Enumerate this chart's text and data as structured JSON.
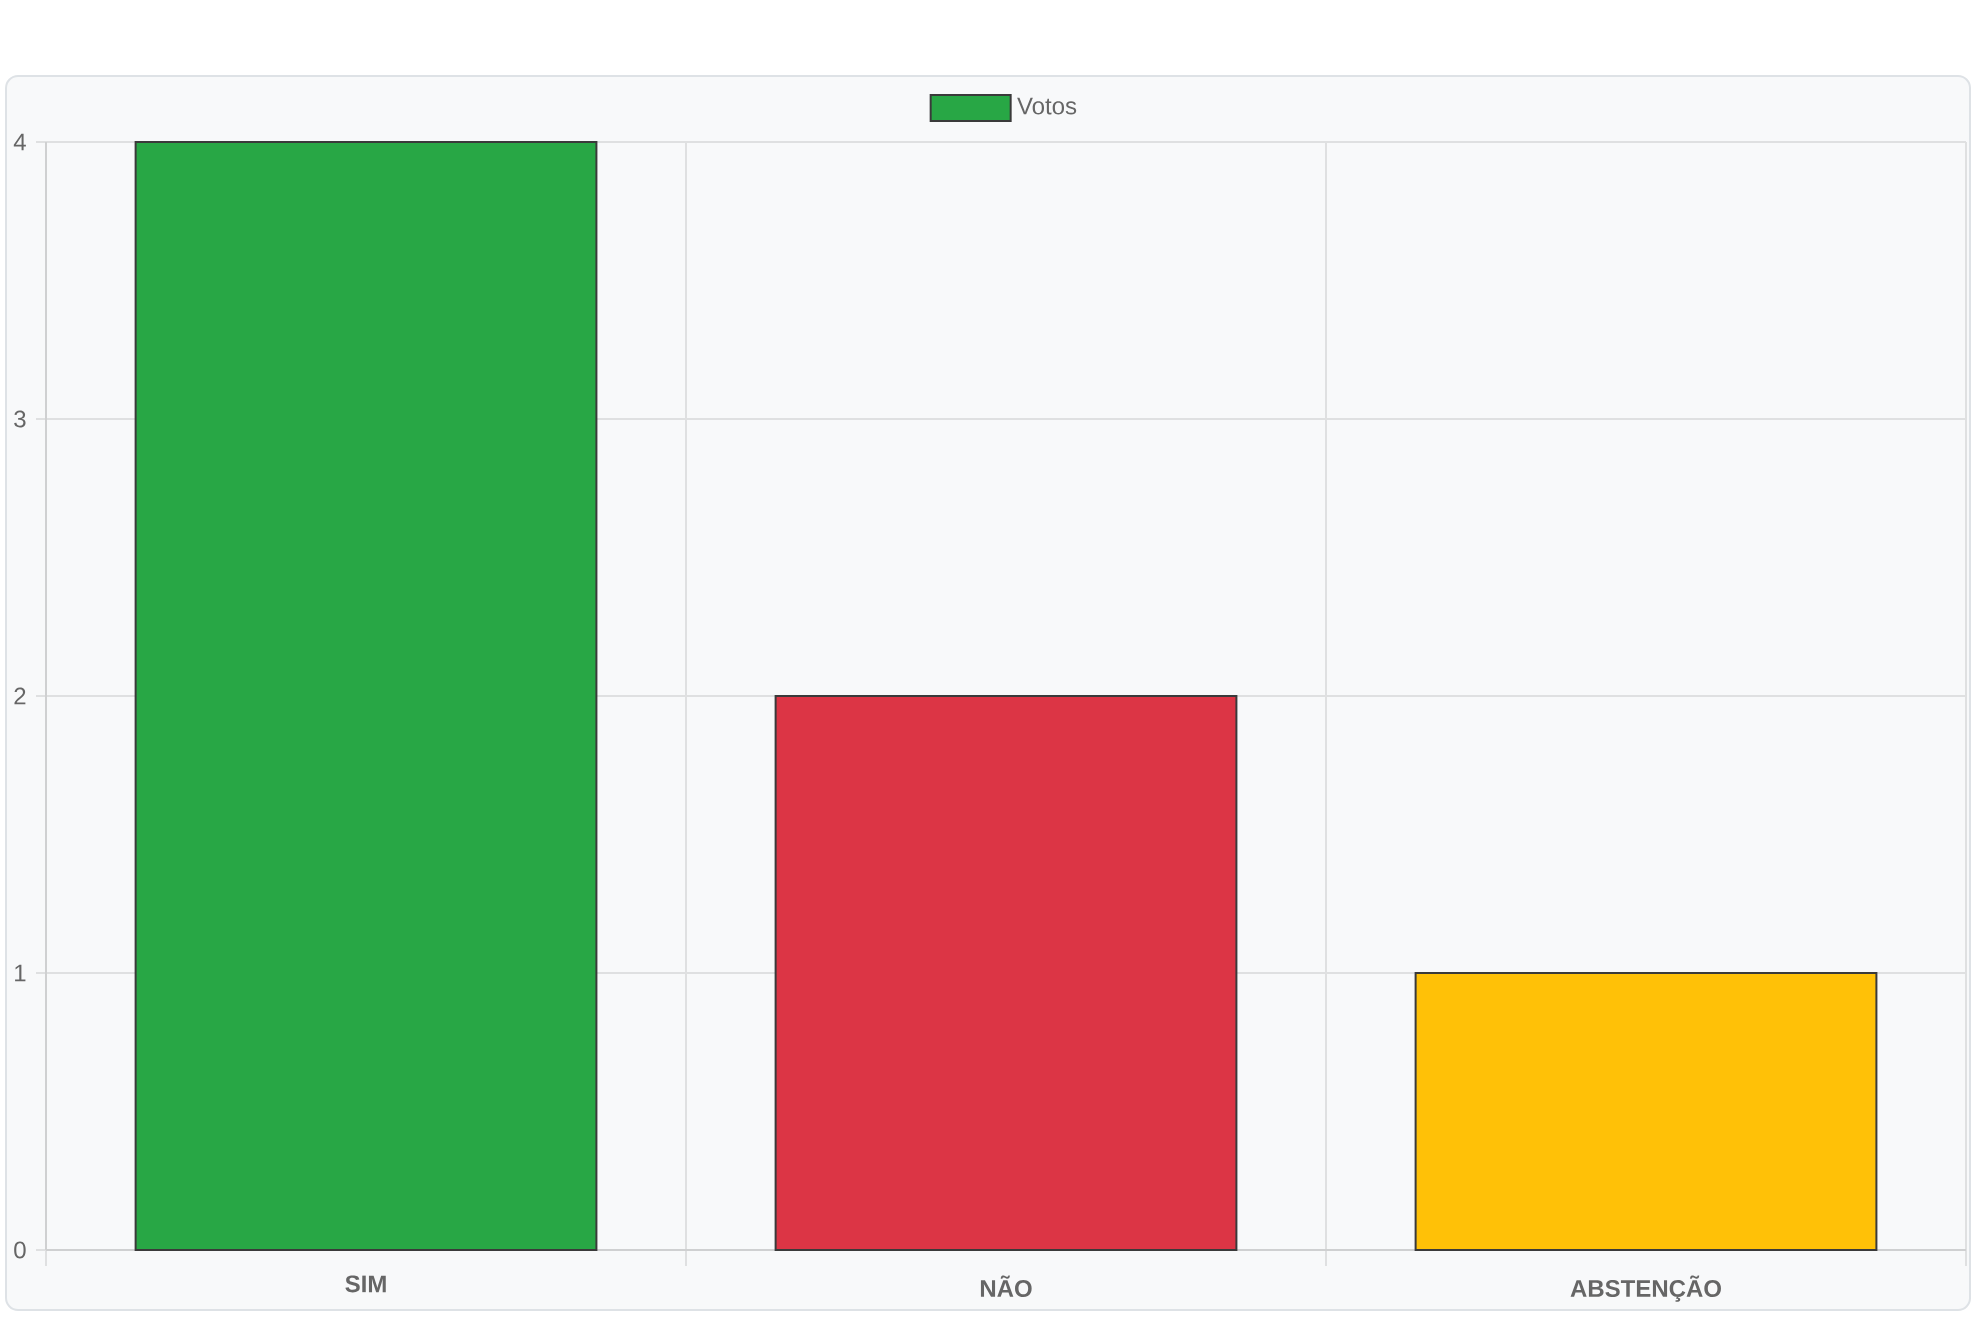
{
  "chart_data": {
    "type": "bar",
    "categories": [
      "SIM",
      "NÃO",
      "ABSTENÇÃO"
    ],
    "series": [
      {
        "name": "Votos",
        "values": [
          4,
          2,
          1
        ],
        "colors": [
          "#28a745",
          "#dc3545",
          "#ffc107"
        ]
      }
    ],
    "ylim": [
      0,
      4
    ],
    "yticks": [
      0,
      1,
      2,
      3,
      4
    ],
    "grid": true,
    "legend": "top"
  }
}
